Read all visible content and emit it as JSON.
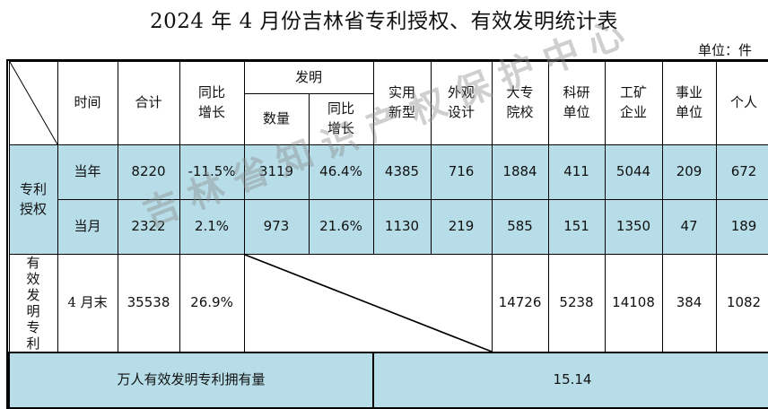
{
  "title": "2024 年 4 月份吉林省专利授权、有效发明统计表",
  "unit": "单位：件",
  "watermark": "吉林省知识产权保护中心",
  "headers": {
    "time": "时间",
    "total": "合计",
    "yoy": "同比增长",
    "invention": "发明",
    "inv_count": "数量",
    "inv_yoy": "同比增长",
    "utility": "实用新型",
    "design": "外观设计",
    "university": "大专院校",
    "research": "科研单位",
    "industry": "工矿企业",
    "institution": "事业单位",
    "individual": "个人"
  },
  "group_label": "专利授权",
  "rows": {
    "year": {
      "time": "当年",
      "total": "8220",
      "yoy": "-11.5%",
      "inv_count": "3119",
      "inv_yoy": "46.4%",
      "utility": "4385",
      "design": "716",
      "university": "1884",
      "research": "411",
      "industry": "5044",
      "institution": "209",
      "individual": "672"
    },
    "month": {
      "time": "当月",
      "total": "2322",
      "yoy": "2.1%",
      "inv_count": "973",
      "inv_yoy": "21.6%",
      "utility": "1130",
      "design": "219",
      "university": "585",
      "research": "151",
      "industry": "1350",
      "institution": "47",
      "individual": "189"
    },
    "valid": {
      "label": "有效发明专利",
      "time": "4 月末",
      "total": "35538",
      "yoy": "26.9%",
      "university": "14726",
      "research": "5238",
      "industry": "14108",
      "institution": "384",
      "individual": "1082"
    }
  },
  "per_capita": {
    "label": "万人有效发明专利拥有量",
    "value": "15.14"
  }
}
